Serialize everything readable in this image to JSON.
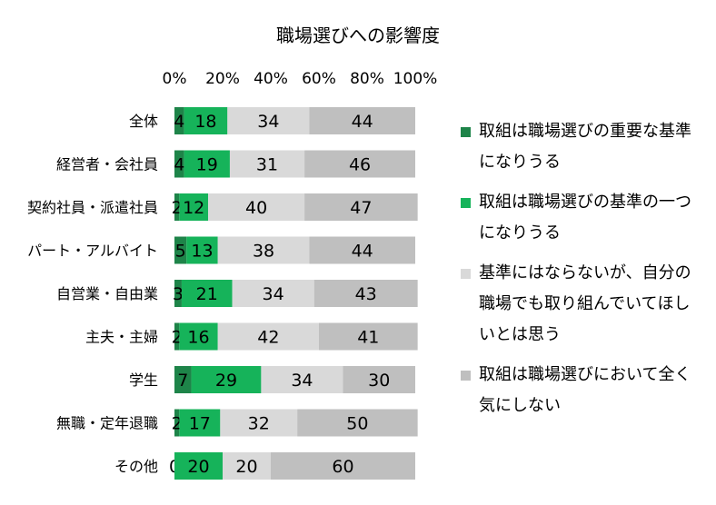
{
  "chart_data": {
    "type": "bar",
    "orientation": "horizontal",
    "stacked": true,
    "title": "職場選びへの影響度",
    "xlim": [
      0,
      100
    ],
    "xticks": [
      "0%",
      "20%",
      "40%",
      "60%",
      "80%",
      "100%"
    ],
    "categories": [
      "全体",
      "経営者・会社員",
      "契約社員・派遣社員",
      "パート・アルバイト",
      "自営業・自由業",
      "主夫・主婦",
      "学生",
      "無職・定年退職",
      "その他"
    ],
    "series": [
      {
        "name": "取組は職場選びの重要な基準になりうる",
        "color": "#1e8449",
        "values": [
          4,
          4,
          2,
          5,
          3,
          2,
          7,
          2,
          0
        ]
      },
      {
        "name": "取組は職場選びの基準の一つになりうる",
        "color": "#16b35a",
        "values": [
          18,
          19,
          12,
          13,
          21,
          16,
          29,
          17,
          20
        ]
      },
      {
        "name": "基準にはならないが、自分の職場でも取り組んでいてほしいとは思う",
        "color": "#d9d9d9",
        "values": [
          34,
          31,
          40,
          38,
          34,
          42,
          34,
          32,
          20
        ]
      },
      {
        "name": "取組は職場選びにおいて全く気にしない",
        "color": "#bfbfbf",
        "values": [
          44,
          46,
          47,
          44,
          43,
          41,
          30,
          50,
          60
        ]
      }
    ],
    "legend_position": "right",
    "grid": false
  },
  "legend": {
    "items": [
      {
        "label": "取組は職場選びの重要な基準になりうる",
        "color": "#1e8449"
      },
      {
        "label": "取組は職場選びの基準の一つになりうる",
        "color": "#16b35a"
      },
      {
        "label": "基準にはならないが、自分の職場でも取り組んでいてほしいとは思う",
        "color": "#d9d9d9"
      },
      {
        "label": "取組は職場選びにおいて全く気にしない",
        "color": "#bfbfbf"
      }
    ]
  }
}
